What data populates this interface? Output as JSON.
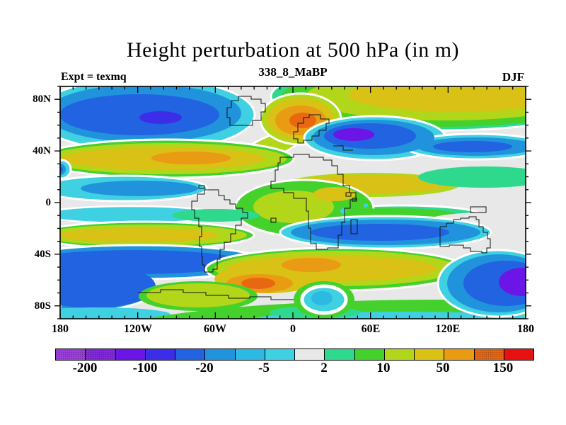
{
  "title": "Height perturbation at 500 hPa (in m)",
  "subtitle": "338_8_MaBP",
  "experiment_label": "Expt = texmq",
  "season_label": "DJF",
  "axes": {
    "lat_labels": [
      "80N",
      "40N",
      "0",
      "40S",
      "80S"
    ],
    "lon_labels": [
      "180",
      "120W",
      "60W",
      "0",
      "60E",
      "120E",
      "180"
    ]
  },
  "colorbar": {
    "labels": [
      "-200",
      "-100",
      "-20",
      "-5",
      "2",
      "10",
      "50",
      "150"
    ],
    "colors": [
      "#9c3fdf",
      "#8428e0",
      "#6b15e6",
      "#3c2ee8",
      "#2163e0",
      "#2193dd",
      "#2cb9e2",
      "#3fd0e2",
      "#e8e8e8",
      "#2ed98d",
      "#44d12c",
      "#b2d61a",
      "#d9c116",
      "#e89b13",
      "#e86812",
      "#e81111"
    ],
    "neutral": "#e8e8e8"
  },
  "chart_data": {
    "type": "heatmap",
    "subtype": "filled-contour-map",
    "title": "Height perturbation at 500 hPa (in m)",
    "subtitle": "338_8_MaBP",
    "experiment": "texmq",
    "season": "DJF",
    "units": "m",
    "projection": "equirectangular lat-lon, dateline at left/right edges",
    "lon_range": [
      -180,
      180
    ],
    "lat_range": [
      -90,
      90
    ],
    "lon_tick_labels": [
      "180",
      "120W",
      "60W",
      "0",
      "60E",
      "120E",
      "180"
    ],
    "lat_tick_labels": [
      "80N",
      "40N",
      "0",
      "40S",
      "80S"
    ],
    "contour_levels": [
      -200,
      -150,
      -100,
      -50,
      -20,
      -10,
      -5,
      -2,
      2,
      5,
      10,
      20,
      50,
      100,
      150
    ],
    "labeled_levels": [
      -200,
      -100,
      -20,
      -5,
      2,
      10,
      50,
      150
    ],
    "palette": [
      "#9c3fdf",
      "#8428e0",
      "#6b15e6",
      "#3c2ee8",
      "#2163e0",
      "#2193dd",
      "#2cb9e2",
      "#3fd0e2",
      "#e8e8e8",
      "#2ed98d",
      "#44d12c",
      "#b2d61a",
      "#d9c116",
      "#e89b13",
      "#e86812",
      "#e81111"
    ],
    "overlay": "black coastline outlines",
    "features": [
      {
        "name": "North Pacific / Arctic low",
        "lon": "180W-60W",
        "lat": "50N-85N",
        "approx_extreme_m": -80
      },
      {
        "name": "North America subtropical high band",
        "lon": "180W-20W",
        "lat": "22N-47N",
        "approx_extreme_m": 70
      },
      {
        "name": "Greenland-Scandinavia high",
        "lon": "20W-30E",
        "lat": "45N-80N",
        "approx_extreme_m": 130
      },
      {
        "name": "West-Central Asia low",
        "lon": "20E-110E",
        "lat": "35N-65N",
        "approx_extreme_m": -120
      },
      {
        "name": "Siberian Arctic high band",
        "lon": "40E-180E",
        "lat": "60N-88N",
        "approx_extreme_m": 40
      },
      {
        "name": "East Asia low tail",
        "lon": "100E-180E",
        "lat": "33N-50N",
        "approx_extreme_m": -40
      },
      {
        "name": "Equatorial Pacific low band",
        "lon": "180W-75W",
        "lat": "0-20N",
        "approx_extreme_m": -15
      },
      {
        "name": "Tropical Africa weak high",
        "lon": "25W-65E",
        "lat": "18N-12S",
        "approx_extreme_m": 15
      },
      {
        "name": "SH subtropical high band (Pacific)",
        "lon": "180W-25W",
        "lat": "15S-30S",
        "approx_extreme_m": 30
      },
      {
        "name": "Indian Ocean low band",
        "lon": "0E-145E",
        "lat": "12S-36S",
        "approx_extreme_m": -40
      },
      {
        "name": "South Pacific mid-latitude low",
        "lon": "180W-20W",
        "lat": "33S-75S",
        "approx_extreme_m": -45
      },
      {
        "name": "Southern Ocean high (Atlantic-Indian)",
        "lon": "65W-140E",
        "lat": "35S-70S",
        "approx_extreme_m": 110
      },
      {
        "name": "Antarctic cyan eye",
        "lon": "10E-40E",
        "lat": "70S-80S",
        "approx_extreme_m": -8
      },
      {
        "name": "Ross Sea deep low",
        "lon": "135E-180E",
        "lat": "40S-78S",
        "approx_extreme_m": -120
      }
    ]
  }
}
